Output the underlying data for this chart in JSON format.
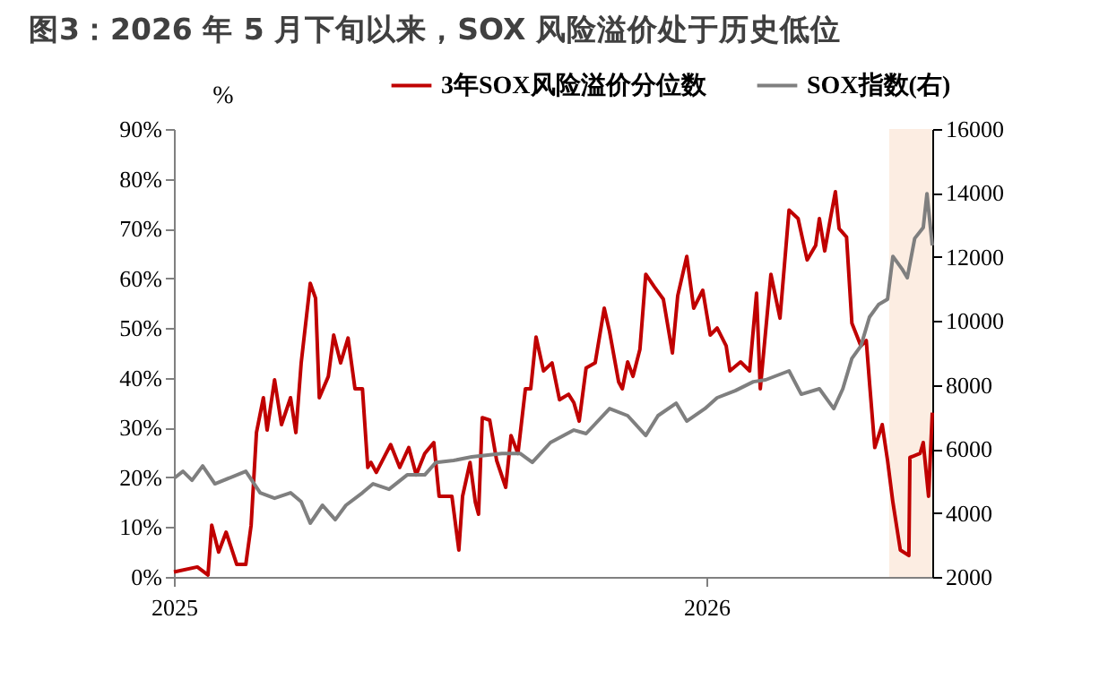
{
  "chart_data": {
    "type": "line",
    "title": "图3：2026 年 5 月下旬以来，SOX 风险溢价处于历史低位",
    "ylabel": "%",
    "xlim": [
      2025,
      2026.424
    ],
    "xticks": [
      2025,
      2026
    ],
    "ylim": [
      0,
      90
    ],
    "yticks": [
      {
        "value": 0,
        "label": "0%"
      },
      {
        "value": 10,
        "label": "10%"
      },
      {
        "value": 20,
        "label": "20%"
      },
      {
        "value": 30,
        "label": "30%"
      },
      {
        "value": 40,
        "label": "40%"
      },
      {
        "value": 50,
        "label": "50%"
      },
      {
        "value": 60,
        "label": "60%"
      },
      {
        "value": 70,
        "label": "70%"
      },
      {
        "value": 80,
        "label": "80%"
      },
      {
        "value": 90,
        "label": "90%"
      }
    ],
    "y2lim": [
      2000,
      16000
    ],
    "y2ticks": [
      2000,
      4000,
      6000,
      8000,
      10000,
      12000,
      14000,
      16000
    ],
    "legend": "top",
    "grid": false,
    "marker": "none",
    "line_style": "solid",
    "bands": [
      {
        "axis": "x",
        "from": 2026.343,
        "to": 2026.424,
        "color": "#fbe3d2"
      }
    ],
    "series": [
      {
        "name": "3年SOX风险溢价分位数",
        "color": "#c00000",
        "x": [
          2025.0,
          2025.044,
          2025.064,
          2025.071,
          2025.084,
          2025.098,
          2025.118,
          2025.135,
          2025.145,
          2025.155,
          2025.168,
          2025.175,
          2025.189,
          2025.202,
          2025.219,
          2025.229,
          2025.239,
          2025.256,
          2025.266,
          2025.273,
          2025.29,
          2025.3,
          2025.313,
          2025.327,
          2025.34,
          2025.354,
          2025.364,
          2025.37,
          2025.38,
          2025.407,
          2025.424,
          2025.441,
          2025.455,
          2025.471,
          2025.488,
          2025.498,
          2025.522,
          2025.535,
          2025.542,
          2025.556,
          2025.566,
          2025.572,
          2025.579,
          2025.593,
          2025.606,
          2025.623,
          2025.633,
          2025.646,
          2025.66,
          2025.67,
          2025.68,
          2025.694,
          2025.71,
          2025.724,
          2025.741,
          2025.751,
          2025.761,
          2025.774,
          2025.791,
          2025.808,
          2025.818,
          2025.835,
          2025.842,
          2025.852,
          2025.862,
          2025.875,
          2025.886,
          2025.902,
          2025.919,
          2025.936,
          2025.946,
          2025.963,
          2025.976,
          2025.993,
          2026.007,
          2026.02,
          2026.037,
          2026.044,
          2026.064,
          2026.081,
          2026.094,
          2026.101,
          2026.121,
          2026.138,
          2026.155,
          2026.172,
          2026.189,
          2026.205,
          2026.212,
          2026.222,
          2026.232,
          2026.242,
          2026.249,
          2026.263,
          2026.273,
          2026.29,
          2026.3,
          2026.306,
          2026.316,
          2026.33,
          2026.34,
          2026.35,
          2026.364,
          2026.38,
          2026.382,
          2026.401,
          2026.407,
          2026.417,
          2026.424
        ],
        "values": [
          1,
          2,
          0.4,
          10.4,
          5,
          9,
          2.5,
          2.5,
          10.4,
          29,
          36,
          29.5,
          39.6,
          30.6,
          36,
          29,
          43,
          59,
          56,
          36,
          40.3,
          48.6,
          43,
          48,
          37.8,
          37.8,
          22,
          23,
          21,
          26.6,
          22,
          26,
          20.5,
          24.8,
          27,
          16.2,
          16.2,
          5.4,
          16.2,
          23,
          15,
          12.6,
          32,
          31.5,
          23.4,
          18,
          28.4,
          24.8,
          37.8,
          37.8,
          48.2,
          41.4,
          43,
          35.6,
          36.7,
          35,
          31.3,
          42,
          43,
          54,
          49.3,
          39.2,
          37.8,
          43.2,
          40.3,
          45.7,
          60.8,
          58.3,
          55.8,
          45,
          56.5,
          64.4,
          54,
          57.6,
          48.6,
          50,
          46.4,
          41.4,
          43.2,
          41.4,
          57,
          37.8,
          60.8,
          52,
          73.7,
          72,
          63.7,
          66.6,
          72,
          65.5,
          71.6,
          77.4,
          70,
          68.3,
          51,
          46.4,
          47.5,
          39.2,
          26,
          30.6,
          23.4,
          15,
          5.4,
          4.3,
          24,
          24.8,
          27,
          16.2,
          33
        ]
      },
      {
        "name": "SOX指数(右)",
        "color": "#7f7f7f",
        "axis": "y2",
        "x": [
          2025.0,
          2025.017,
          2025.034,
          2025.054,
          2025.077,
          2025.135,
          2025.162,
          2025.189,
          2025.219,
          2025.239,
          2025.256,
          2025.279,
          2025.303,
          2025.323,
          2025.354,
          2025.374,
          2025.404,
          2025.438,
          2025.471,
          2025.492,
          2025.525,
          2025.559,
          2025.616,
          2025.65,
          2025.673,
          2025.707,
          2025.751,
          2025.774,
          2025.818,
          2025.852,
          2025.886,
          2025.909,
          2025.943,
          2025.963,
          2025.997,
          2026.02,
          2026.054,
          2026.088,
          2026.111,
          2026.155,
          2026.178,
          2026.212,
          2026.239,
          2026.256,
          2026.273,
          2026.29,
          2026.306,
          2026.323,
          2026.34,
          2026.35,
          2026.367,
          2026.377,
          2026.391,
          2026.407,
          2026.414,
          2026.424
        ],
        "values": [
          5080,
          5300,
          5020,
          5470,
          4910,
          5300,
          4630,
          4460,
          4630,
          4350,
          3680,
          4240,
          3790,
          4240,
          4630,
          4910,
          4740,
          5190,
          5190,
          5580,
          5640,
          5750,
          5860,
          5860,
          5580,
          6200,
          6590,
          6480,
          7260,
          7040,
          6420,
          7040,
          7430,
          6870,
          7260,
          7600,
          7820,
          8100,
          8160,
          8440,
          7710,
          7880,
          7260,
          7880,
          8830,
          9220,
          10120,
          10510,
          10680,
          12020,
          11630,
          11350,
          12580,
          12920,
          13980,
          12360
        ]
      }
    ]
  }
}
